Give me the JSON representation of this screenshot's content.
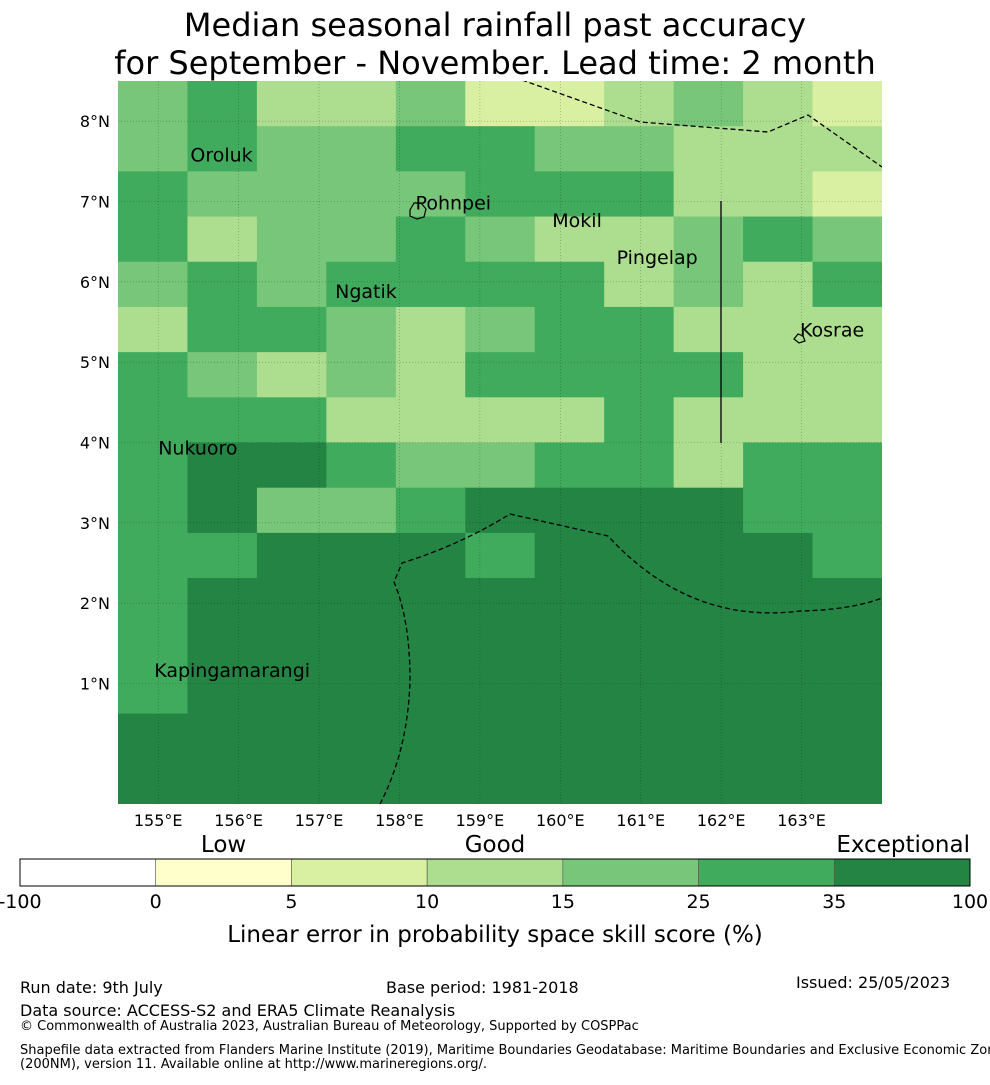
{
  "title": {
    "line1": "Median seasonal rainfall past accuracy",
    "line2": "for September - November. Lead time: 2 month"
  },
  "map": {
    "lon_range": [
      154.5,
      164.0
    ],
    "lat_range": [
      -0.5,
      8.5
    ],
    "lat_ticks": [
      {
        "value": 8,
        "label": "8°N"
      },
      {
        "value": 7,
        "label": "7°N"
      },
      {
        "value": 6,
        "label": "6°N"
      },
      {
        "value": 5,
        "label": "5°N"
      },
      {
        "value": 4,
        "label": "4°N"
      },
      {
        "value": 3,
        "label": "3°N"
      },
      {
        "value": 2,
        "label": "2°N"
      },
      {
        "value": 1,
        "label": "1°N"
      }
    ],
    "lon_ticks": [
      {
        "value": 155,
        "label": "155°E"
      },
      {
        "value": 156,
        "label": "156°E"
      },
      {
        "value": 157,
        "label": "157°E"
      },
      {
        "value": 158,
        "label": "158°E"
      },
      {
        "value": 159,
        "label": "159°E"
      },
      {
        "value": 160,
        "label": "160°E"
      },
      {
        "value": 161,
        "label": "161°E"
      },
      {
        "value": 162,
        "label": "162°E"
      },
      {
        "value": 163,
        "label": "163°E"
      }
    ],
    "grid_cols": 11,
    "grid_rows": 16,
    "skill_classes_grid": [
      "45334223432",
      "45445544333",
      "54444555332",
      "53445433454",
      "45455553435",
      "35543455333",
      "54343555533",
      "55533335333",
      "56654455355",
      "56445666655",
      "55666566665",
      "56666666666",
      "56666666666",
      "56666666666",
      "66666666666",
      "66666666666"
    ],
    "places": [
      {
        "name": "Oroluk",
        "lon": 155.4,
        "lat": 7.5
      },
      {
        "name": "Pohnpei",
        "lon": 158.2,
        "lat": 6.9
      },
      {
        "name": "Mokil",
        "lon": 159.9,
        "lat": 6.68
      },
      {
        "name": "Pingelap",
        "lon": 160.7,
        "lat": 6.22
      },
      {
        "name": "Ngatik",
        "lon": 157.2,
        "lat": 5.8
      },
      {
        "name": "Kosrae",
        "lon": 162.98,
        "lat": 5.32
      },
      {
        "name": "Nukuoro",
        "lon": 155.0,
        "lat": 3.85
      },
      {
        "name": "Kapingamarangi",
        "lon": 154.95,
        "lat": 1.08
      }
    ]
  },
  "colorbar": {
    "categories": [
      "Low",
      "Good",
      "Exceptional"
    ],
    "ticks": [
      "-100",
      "0",
      "5",
      "10",
      "15",
      "25",
      "35",
      "100"
    ],
    "colors": [
      "#ffffff",
      "#ffffcc",
      "#d9f0a3",
      "#addd8e",
      "#78c679",
      "#41ab5d",
      "#238443"
    ],
    "label": "Linear error in probability space skill score (%)"
  },
  "footer": {
    "run_date": "Run date: 9th July",
    "base_period": "Base period: 1981-2018",
    "issued": "Issued: 25/05/2023",
    "data_source": "Data source: ACCESS-S2 and ERA5 Climate Reanalysis",
    "copyright": "© Commonwealth of Australia 2023, Australian Bureau of Meteorology, Supported by COSPPac",
    "shapefile_1": "Shapefile data extracted from Flanders Marine Institute (2019), Maritime Boundaries Geodatabase: Maritime Boundaries and Exclusive Economic Zones",
    "shapefile_2": "(200NM), version 11. Available online at http://www.marineregions.org/."
  }
}
